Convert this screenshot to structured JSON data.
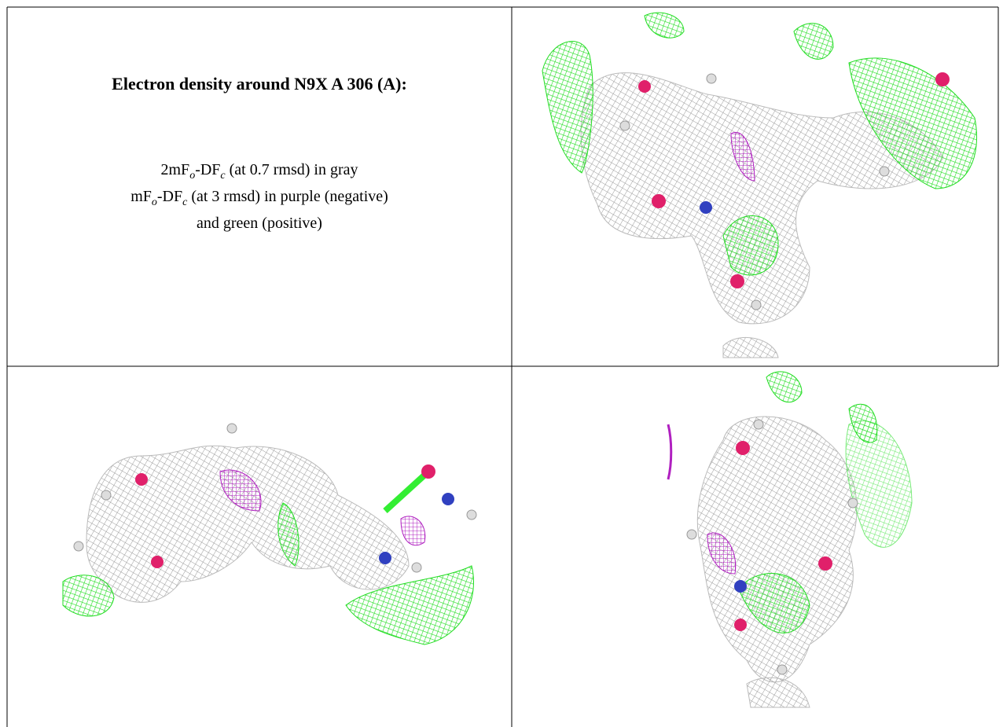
{
  "title": "Electron density around N9X A 306 (A):",
  "legend": [
    {
      "parts": [
        "2mF",
        "o",
        "-DF",
        "c",
        " (at 0.7 rmsd) in gray"
      ]
    },
    {
      "parts": [
        "mF",
        "o",
        "-DF",
        "c",
        " (at 3 rmsd) in purple (negative)"
      ]
    },
    {
      "parts": [
        "and green (positive)"
      ]
    }
  ]
}
